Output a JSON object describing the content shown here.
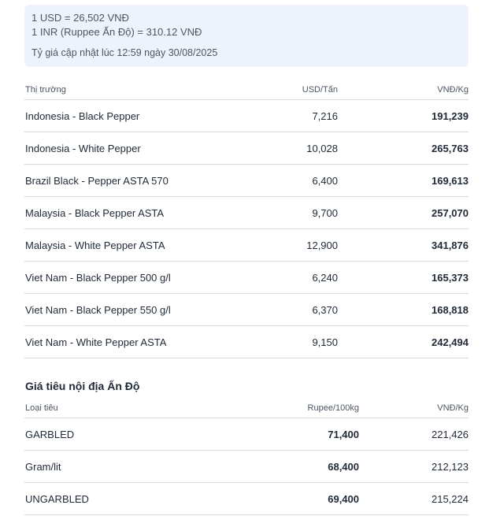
{
  "exchange": {
    "usd_line": "1 USD = 26,502 VNĐ",
    "inr_line": "1 INR (Ruppee Ấn Độ) = 310.12 VNĐ",
    "updated": "Tỷ giá cập nhật lúc 12:59 ngày 30/08/2025"
  },
  "world_table": {
    "headers": {
      "market": "Thị trường",
      "usd": "USD/Tấn",
      "vnd": "VNĐ/Kg"
    },
    "rows": [
      {
        "name": "Indonesia - Black Pepper",
        "usd": "7,216",
        "vnd": "191,239"
      },
      {
        "name": "Indonesia - White Pepper",
        "usd": "10,028",
        "vnd": "265,763"
      },
      {
        "name": "Brazil Black - Pepper ASTA 570",
        "usd": "6,400",
        "vnd": "169,613"
      },
      {
        "name": "Malaysia - Black Pepper ASTA",
        "usd": "9,700",
        "vnd": "257,070"
      },
      {
        "name": "Malaysia - White Pepper ASTA",
        "usd": "12,900",
        "vnd": "341,876"
      },
      {
        "name": "Viet Nam - Black Pepper 500 g/l",
        "usd": "6,240",
        "vnd": "165,373"
      },
      {
        "name": "Viet Nam - Black Pepper 550 g/l",
        "usd": "6,370",
        "vnd": "168,818"
      },
      {
        "name": "Viet Nam - White Pepper ASTA",
        "usd": "9,150",
        "vnd": "242,494"
      }
    ]
  },
  "india_section": {
    "title": "Giá tiêu nội địa Ấn Độ",
    "headers": {
      "type": "Loại tiêu",
      "rupee": "Rupee/100kg",
      "vnd": "VNĐ/Kg"
    },
    "rows": [
      {
        "name": "GARBLED",
        "rupee": "71,400",
        "vnd": "221,426"
      },
      {
        "name": "Gram/lit",
        "rupee": "68,400",
        "vnd": "212,123"
      },
      {
        "name": "UNGARBLED",
        "rupee": "69,400",
        "vnd": "215,224"
      }
    ]
  }
}
